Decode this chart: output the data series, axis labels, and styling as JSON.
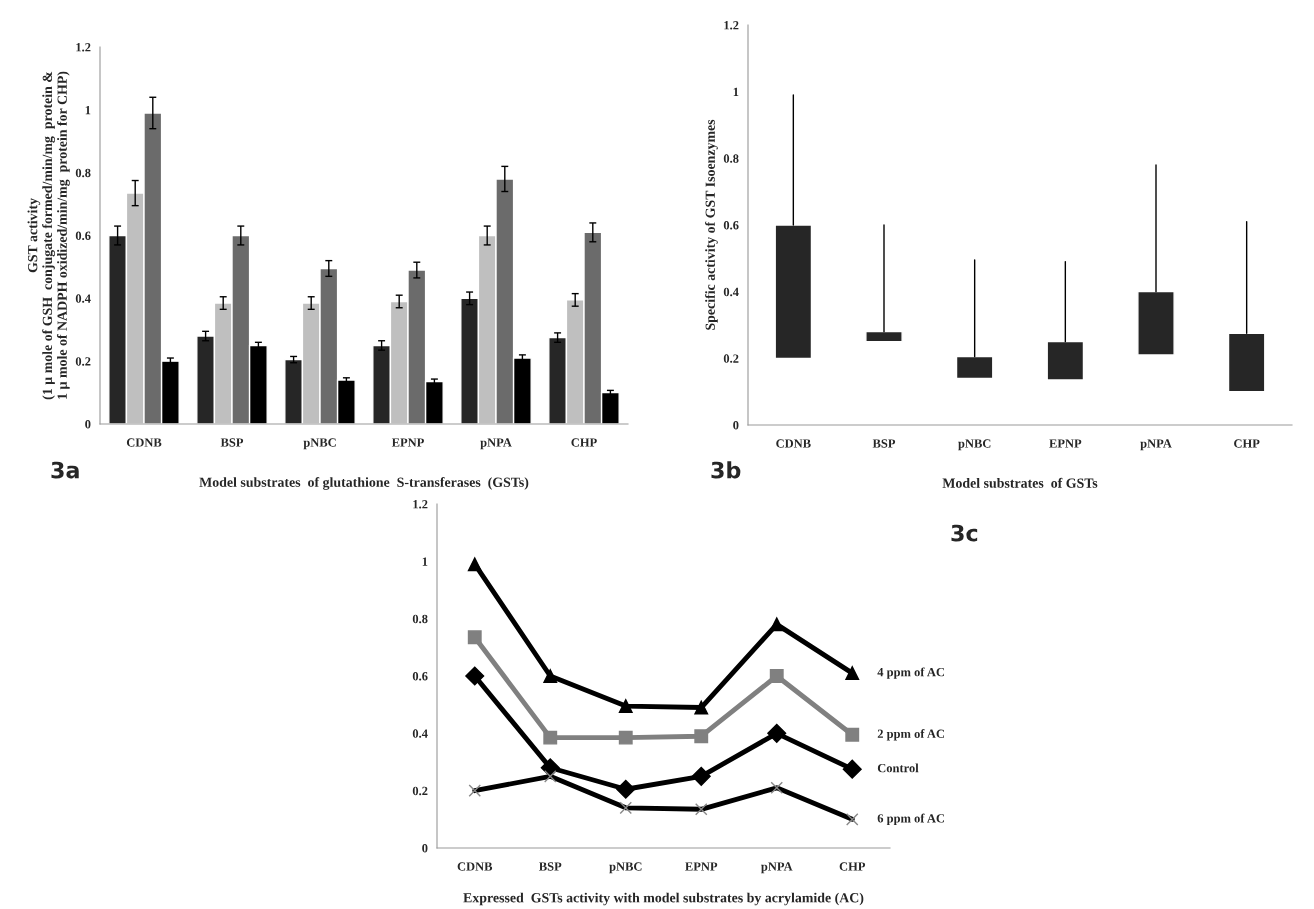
{
  "chart_data": [
    {
      "type": "bar",
      "categories": [
        "CDNB",
        "BSP",
        "pNBC",
        "EPNP",
        "pNPA",
        "CHP"
      ],
      "xlabel": "Model substrates  of glutathione  S-transferases  (GSTs)",
      "ylabel": "GST activity\n(1 µ mole of GSH  conjugate formed/min/mg  protein &\n1 µ mole of NADPH oxidized/min/mg  protein for CHP)",
      "ylim": [
        0,
        1.2
      ],
      "yticks": [
        0,
        0.2,
        0.4,
        0.6,
        0.8,
        1,
        1.2
      ],
      "grid": false,
      "legend": false,
      "annotations": [
        "3a"
      ],
      "series": [
        {
          "color": "#262626",
          "values": [
            0.6,
            0.28,
            0.205,
            0.25,
            0.4,
            0.275
          ],
          "errors": [
            0.03,
            0.015,
            0.01,
            0.015,
            0.02,
            0.015
          ]
        },
        {
          "color": "#bfbfbf",
          "values": [
            0.735,
            0.385,
            0.385,
            0.39,
            0.6,
            0.395
          ],
          "errors": [
            0.04,
            0.02,
            0.02,
            0.02,
            0.03,
            0.02
          ]
        },
        {
          "color": "#6b6b6b",
          "values": [
            0.99,
            0.6,
            0.495,
            0.49,
            0.78,
            0.61
          ],
          "errors": [
            0.05,
            0.03,
            0.025,
            0.025,
            0.04,
            0.03
          ]
        },
        {
          "color": "#000000",
          "values": [
            0.2,
            0.25,
            0.14,
            0.135,
            0.21,
            0.1
          ],
          "errors": [
            0.01,
            0.01,
            0.007,
            0.008,
            0.01,
            0.007
          ]
        }
      ]
    },
    {
      "type": "bar",
      "categories": [
        "CDNB",
        "BSP",
        "pNBC",
        "EPNP",
        "pNPA",
        "CHP"
      ],
      "xlabel": "Model substrates  of GSTs",
      "ylabel": "Specific activity of GST Isoenzymes",
      "ylim": [
        0,
        1.2
      ],
      "yticks": [
        0,
        0.2,
        0.4,
        0.6,
        0.8,
        1,
        1.2
      ],
      "grid": false,
      "legend": false,
      "annotations": [
        "3b"
      ],
      "series": [
        {
          "color": "#262626",
          "base": [
            0.2,
            0.25,
            0.14,
            0.135,
            0.21,
            0.1
          ],
          "values": [
            0.4,
            0.03,
            0.065,
            0.115,
            0.19,
            0.175
          ],
          "errors": [
            [
              0.6,
              0.99
            ],
            [
              0.28,
              0.6
            ],
            [
              0.205,
              0.495
            ],
            [
              0.25,
              0.49
            ],
            [
              0.4,
              0.78
            ],
            [
              0.275,
              0.61
            ]
          ]
        }
      ]
    },
    {
      "type": "line",
      "categories": [
        "CDNB",
        "BSP",
        "pNBC",
        "EPNP",
        "pNPA",
        "CHP"
      ],
      "xlabel": "Expressed  GSTs activity with model substrates by acrylamide (AC)",
      "ylim": [
        0,
        1.2
      ],
      "yticks": [
        0,
        0.2,
        0.4,
        0.6,
        0.8,
        1,
        1.2
      ],
      "grid": false,
      "legend": false,
      "annotations": [
        "3c"
      ],
      "series": [
        {
          "name": "Control",
          "color": "#000000",
          "marker": "diamond",
          "values": [
            0.6,
            0.28,
            0.205,
            0.25,
            0.4,
            0.275
          ]
        },
        {
          "name": "2 ppm of AC",
          "color": "#808080",
          "marker": "square",
          "values": [
            0.735,
            0.385,
            0.385,
            0.39,
            0.6,
            0.395
          ]
        },
        {
          "name": "4 ppm of AC",
          "color": "#000000",
          "marker": "triangle",
          "values": [
            0.99,
            0.6,
            0.495,
            0.49,
            0.78,
            0.61
          ]
        },
        {
          "name": "6 ppm of AC",
          "color": "#000000",
          "marker": "cross",
          "values": [
            0.2,
            0.25,
            0.14,
            0.135,
            0.21,
            0.1
          ]
        }
      ]
    }
  ]
}
